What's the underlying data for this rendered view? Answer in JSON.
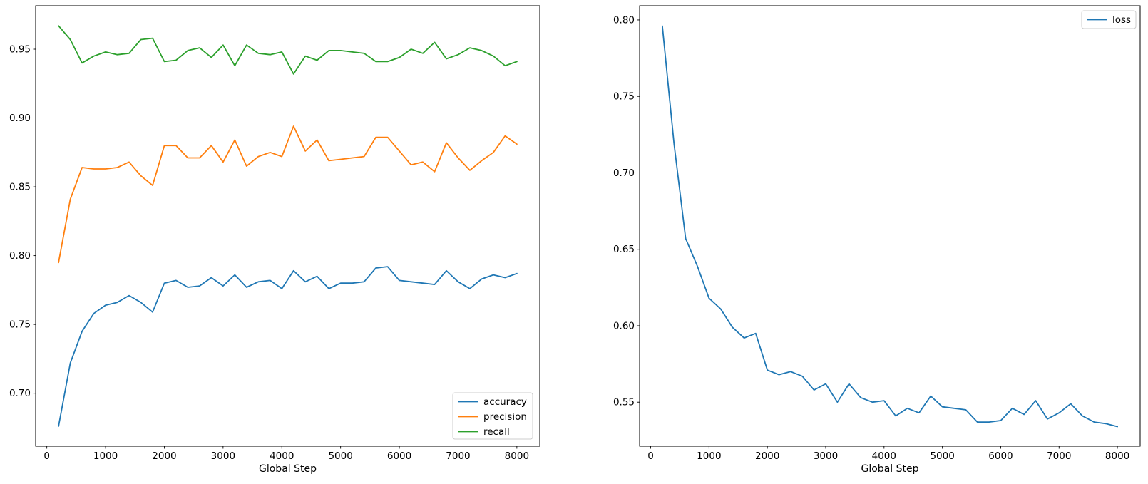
{
  "figure": {
    "background": "#ffffff",
    "axis_color": "#000000"
  },
  "chart_data": [
    {
      "type": "line",
      "name": "metrics-plot",
      "title": "",
      "xlabel": "Global Step",
      "ylabel": "",
      "grid": false,
      "legend": {
        "position": "lower right"
      },
      "xlim": [
        -190,
        8390
      ],
      "ylim": [
        0.6615,
        0.9816
      ],
      "xticks": [
        0,
        1000,
        2000,
        3000,
        4000,
        5000,
        6000,
        7000,
        8000
      ],
      "xtick_labels": [
        "0",
        "1000",
        "2000",
        "3000",
        "4000",
        "5000",
        "6000",
        "7000",
        "8000"
      ],
      "yticks": [
        0.7,
        0.75,
        0.8,
        0.85,
        0.9,
        0.95
      ],
      "ytick_labels": [
        "0.70",
        "0.75",
        "0.80",
        "0.85",
        "0.90",
        "0.95"
      ],
      "x": [
        200,
        400,
        600,
        800,
        1000,
        1200,
        1400,
        1600,
        1800,
        2000,
        2200,
        2400,
        2600,
        2800,
        3000,
        3200,
        3400,
        3600,
        3800,
        4000,
        4200,
        4400,
        4600,
        4800,
        5000,
        5200,
        5400,
        5600,
        5800,
        6000,
        6200,
        6400,
        6600,
        6800,
        7000,
        7200,
        7400,
        7600,
        7800,
        8000
      ],
      "series": [
        {
          "name": "accuracy",
          "color": "#1f77b4",
          "values": [
            0.676,
            0.722,
            0.745,
            0.758,
            0.764,
            0.766,
            0.771,
            0.766,
            0.759,
            0.78,
            0.782,
            0.777,
            0.778,
            0.784,
            0.778,
            0.786,
            0.777,
            0.781,
            0.782,
            0.776,
            0.789,
            0.781,
            0.785,
            0.776,
            0.78,
            0.78,
            0.781,
            0.791,
            0.792,
            0.782,
            0.781,
            0.78,
            0.779,
            0.789,
            0.781,
            0.776,
            0.783,
            0.786,
            0.784,
            0.787
          ]
        },
        {
          "name": "precision",
          "color": "#ff7f0e",
          "values": [
            0.795,
            0.841,
            0.864,
            0.863,
            0.863,
            0.864,
            0.868,
            0.858,
            0.851,
            0.88,
            0.88,
            0.871,
            0.871,
            0.88,
            0.868,
            0.884,
            0.865,
            0.872,
            0.875,
            0.872,
            0.894,
            0.876,
            0.884,
            0.869,
            0.87,
            0.871,
            0.872,
            0.886,
            0.886,
            0.876,
            0.866,
            0.868,
            0.861,
            0.882,
            0.871,
            0.862,
            0.869,
            0.875,
            0.887,
            0.881
          ]
        },
        {
          "name": "recall",
          "color": "#2ca02c",
          "values": [
            0.967,
            0.957,
            0.94,
            0.945,
            0.948,
            0.946,
            0.947,
            0.957,
            0.958,
            0.941,
            0.942,
            0.949,
            0.951,
            0.944,
            0.953,
            0.938,
            0.953,
            0.947,
            0.946,
            0.948,
            0.932,
            0.945,
            0.942,
            0.949,
            0.949,
            0.948,
            0.947,
            0.941,
            0.941,
            0.944,
            0.95,
            0.947,
            0.955,
            0.943,
            0.946,
            0.951,
            0.949,
            0.945,
            0.938,
            0.941
          ]
        }
      ]
    },
    {
      "type": "line",
      "name": "loss-plot",
      "title": "",
      "xlabel": "Global Step",
      "ylabel": "",
      "grid": false,
      "legend": {
        "position": "upper right"
      },
      "xlim": [
        -190,
        8390
      ],
      "ylim": [
        0.5212,
        0.8093
      ],
      "xticks": [
        0,
        1000,
        2000,
        3000,
        4000,
        5000,
        6000,
        7000,
        8000
      ],
      "xtick_labels": [
        "0",
        "1000",
        "2000",
        "3000",
        "4000",
        "5000",
        "6000",
        "7000",
        "8000"
      ],
      "yticks": [
        0.55,
        0.6,
        0.65,
        0.7,
        0.75,
        0.8
      ],
      "ytick_labels": [
        "0.55",
        "0.60",
        "0.65",
        "0.70",
        "0.75",
        "0.80"
      ],
      "x": [
        200,
        400,
        600,
        800,
        1000,
        1200,
        1400,
        1600,
        1800,
        2000,
        2200,
        2400,
        2600,
        2800,
        3000,
        3200,
        3400,
        3600,
        3800,
        4000,
        4200,
        4400,
        4600,
        4800,
        5000,
        5200,
        5400,
        5600,
        5800,
        6000,
        6200,
        6400,
        6600,
        6800,
        7000,
        7200,
        7400,
        7600,
        7800,
        8000
      ],
      "series": [
        {
          "name": "loss",
          "color": "#1f77b4",
          "values": [
            0.796,
            0.719,
            0.657,
            0.639,
            0.618,
            0.611,
            0.599,
            0.592,
            0.595,
            0.571,
            0.568,
            0.57,
            0.567,
            0.558,
            0.562,
            0.55,
            0.562,
            0.553,
            0.55,
            0.551,
            0.541,
            0.546,
            0.543,
            0.554,
            0.547,
            0.546,
            0.545,
            0.537,
            0.537,
            0.538,
            0.546,
            0.542,
            0.551,
            0.539,
            0.543,
            0.549,
            0.541,
            0.537,
            0.536,
            0.534
          ]
        }
      ]
    }
  ]
}
